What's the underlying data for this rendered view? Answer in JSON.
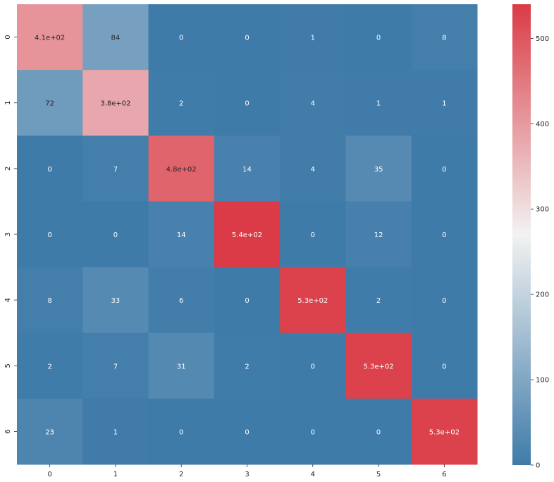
{
  "chart_data": {
    "type": "heatmap",
    "title": "",
    "xlabel": "",
    "ylabel": "",
    "x_categories": [
      "0",
      "1",
      "2",
      "3",
      "4",
      "5",
      "6"
    ],
    "y_categories": [
      "0",
      "1",
      "2",
      "3",
      "4",
      "5",
      "6"
    ],
    "values": [
      [
        410,
        84,
        0,
        0,
        1,
        0,
        8
      ],
      [
        72,
        380,
        2,
        0,
        4,
        1,
        1
      ],
      [
        0,
        7,
        480,
        14,
        4,
        35,
        0
      ],
      [
        0,
        0,
        14,
        540,
        0,
        12,
        0
      ],
      [
        8,
        33,
        6,
        0,
        530,
        2,
        0
      ],
      [
        2,
        7,
        31,
        2,
        0,
        530,
        0
      ],
      [
        23,
        1,
        0,
        0,
        0,
        0,
        530
      ]
    ],
    "annotations": [
      [
        "4.1e+02",
        "84",
        "0",
        "0",
        "1",
        "0",
        "8"
      ],
      [
        "72",
        "3.8e+02",
        "2",
        "0",
        "4",
        "1",
        "1"
      ],
      [
        "0",
        "7",
        "4.8e+02",
        "14",
        "4",
        "35",
        "0"
      ],
      [
        "0",
        "0",
        "14",
        "5.4e+02",
        "0",
        "12",
        "0"
      ],
      [
        "8",
        "33",
        "6",
        "0",
        "5.3e+02",
        "2",
        "0"
      ],
      [
        "2",
        "7",
        "31",
        "2",
        "0",
        "5.3e+02",
        "0"
      ],
      [
        "23",
        "1",
        "0",
        "0",
        "0",
        "0",
        "5.3e+02"
      ]
    ],
    "colorbar": {
      "min": 0,
      "max": 540,
      "ticks": [
        0,
        100,
        200,
        300,
        400,
        500
      ],
      "tick_labels": [
        "0",
        "100",
        "200",
        "300",
        "400",
        "500"
      ],
      "colors": {
        "low": "#3f7ba9",
        "mid": "#f2f2f2",
        "high": "#da3b46"
      }
    }
  }
}
